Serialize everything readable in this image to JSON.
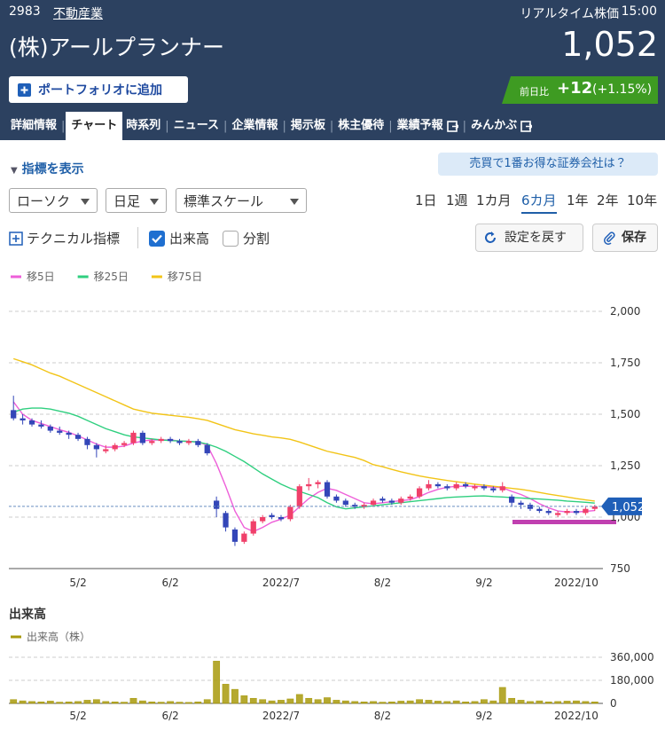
{
  "header": {
    "code": "2983",
    "sector": "不動産業",
    "realtime_label": "リアルタイム株価",
    "time": "15:00",
    "company_name": "(株)アールプランナー",
    "price": "1,052",
    "portfolio_button": "ポートフォリオに追加",
    "change_label": "前日比",
    "change": "+12",
    "change_percent": "(+1.15%)"
  },
  "tabs": [
    "詳細情報",
    "チャート",
    "時系列",
    "ニュース",
    "企業情報",
    "掲示板",
    "株主優待",
    "業績予報",
    "みんかぶ"
  ],
  "controls": {
    "show_indicators": "指標を表示",
    "banner": "売買で1番お得な証券会社は？",
    "chart_style": "ローソク",
    "interval": "日足",
    "scale": "標準スケール",
    "periods": [
      "1日",
      "1週",
      "1カ月",
      "6カ月",
      "1年",
      "2年",
      "10年"
    ],
    "technical": "テクニカル指標",
    "volume_checkbox": "出来高",
    "split_checkbox": "分割",
    "reset_button": "設定を戻す",
    "save_button": "保存"
  },
  "volume_heading": "出来高",
  "chart_data": [
    {
      "type": "candlestick",
      "up_color": "#f0406a",
      "down_color": "#3346b8",
      "categories": [
        null,
        null,
        null,
        null,
        null,
        null,
        null,
        "5/2",
        null,
        null,
        null,
        null,
        null,
        null,
        null,
        null,
        null,
        "6/2",
        null,
        null,
        null,
        null,
        null,
        null,
        null,
        null,
        null,
        null,
        null,
        "2022/7",
        null,
        null,
        null,
        null,
        null,
        null,
        null,
        null,
        null,
        null,
        "8/2",
        null,
        null,
        null,
        null,
        null,
        null,
        null,
        null,
        null,
        null,
        "9/2",
        null,
        null,
        null,
        null,
        null,
        null,
        null,
        null,
        null,
        "2022/10",
        null,
        null
      ],
      "candles": [
        [
          1520,
          1590,
          1470,
          1480
        ],
        [
          1480,
          1500,
          1450,
          1470
        ],
        [
          1470,
          1480,
          1440,
          1450
        ],
        [
          1450,
          1470,
          1430,
          1440
        ],
        [
          1440,
          1450,
          1410,
          1420
        ],
        [
          1420,
          1440,
          1400,
          1410
        ],
        [
          1410,
          1420,
          1380,
          1400
        ],
        [
          1400,
          1410,
          1370,
          1380
        ],
        [
          1380,
          1390,
          1330,
          1350
        ],
        [
          1350,
          1360,
          1290,
          1330
        ],
        [
          1320,
          1350,
          1310,
          1330
        ],
        [
          1330,
          1360,
          1320,
          1350
        ],
        [
          1350,
          1370,
          1340,
          1360
        ],
        [
          1360,
          1420,
          1350,
          1410
        ],
        [
          1410,
          1420,
          1350,
          1360
        ],
        [
          1360,
          1380,
          1350,
          1370
        ],
        [
          1370,
          1390,
          1360,
          1380
        ],
        [
          1380,
          1390,
          1360,
          1370
        ],
        [
          1370,
          1380,
          1350,
          1360
        ],
        [
          1360,
          1380,
          1350,
          1370
        ],
        [
          1370,
          1380,
          1340,
          1350
        ],
        [
          1350,
          1360,
          1300,
          1310
        ],
        [
          1080,
          1100,
          1000,
          1040
        ],
        [
          1020,
          1030,
          930,
          950
        ],
        [
          940,
          950,
          860,
          880
        ],
        [
          880,
          930,
          870,
          920
        ],
        [
          920,
          990,
          910,
          980
        ],
        [
          980,
          1010,
          970,
          1000
        ],
        [
          1010,
          1020,
          990,
          1000
        ],
        [
          1000,
          1010,
          980,
          990
        ],
        [
          990,
          1060,
          980,
          1050
        ],
        [
          1050,
          1160,
          1040,
          1150
        ],
        [
          1150,
          1190,
          1130,
          1160
        ],
        [
          1160,
          1180,
          1140,
          1170
        ],
        [
          1170,
          1180,
          1090,
          1100
        ],
        [
          1100,
          1110,
          1070,
          1080
        ],
        [
          1080,
          1090,
          1050,
          1060
        ],
        [
          1060,
          1070,
          1040,
          1050
        ],
        [
          1050,
          1070,
          1040,
          1060
        ],
        [
          1060,
          1090,
          1050,
          1080
        ],
        [
          1090,
          1100,
          1070,
          1080
        ],
        [
          1080,
          1090,
          1060,
          1070
        ],
        [
          1070,
          1100,
          1060,
          1090
        ],
        [
          1090,
          1110,
          1080,
          1100
        ],
        [
          1100,
          1150,
          1090,
          1140
        ],
        [
          1140,
          1180,
          1130,
          1160
        ],
        [
          1160,
          1170,
          1140,
          1150
        ],
        [
          1150,
          1160,
          1130,
          1140
        ],
        [
          1140,
          1170,
          1130,
          1160
        ],
        [
          1160,
          1170,
          1140,
          1150
        ],
        [
          1140,
          1160,
          1130,
          1150
        ],
        [
          1150,
          1160,
          1130,
          1140
        ],
        [
          1140,
          1150,
          1120,
          1130
        ],
        [
          1130,
          1170,
          1120,
          1150
        ],
        [
          1100,
          1110,
          1050,
          1070
        ],
        [
          1070,
          1080,
          1040,
          1060
        ],
        [
          1060,
          1070,
          1030,
          1040
        ],
        [
          1040,
          1050,
          1020,
          1030
        ],
        [
          1030,
          1040,
          1010,
          1020
        ],
        [
          1010,
          1030,
          1000,
          1020
        ],
        [
          1020,
          1040,
          1010,
          1030
        ],
        [
          1030,
          1040,
          1010,
          1020
        ],
        [
          1020,
          1050,
          1010,
          1040
        ],
        [
          1040,
          1060,
          1030,
          1052
        ]
      ],
      "series": [
        {
          "name": "移5日",
          "color": "#ee5fd9",
          "values": [
            1560,
            1500,
            1470,
            1455,
            1440,
            1425,
            1412,
            1395,
            1375,
            1355,
            1340,
            1340,
            1345,
            1360,
            1370,
            1375,
            1375,
            1375,
            1370,
            1368,
            1365,
            1350,
            1260,
            1150,
            1030,
            950,
            930,
            950,
            975,
            990,
            1010,
            1050,
            1090,
            1120,
            1140,
            1130,
            1110,
            1090,
            1070,
            1065,
            1070,
            1075,
            1080,
            1085,
            1100,
            1120,
            1135,
            1145,
            1150,
            1150,
            1150,
            1148,
            1145,
            1143,
            1125,
            1110,
            1090,
            1065,
            1045,
            1030,
            1025,
            1025,
            1028,
            1032
          ]
        },
        {
          "name": "移25日",
          "color": "#2fcf7f",
          "values": [
            1510,
            1525,
            1530,
            1530,
            1525,
            1515,
            1505,
            1490,
            1470,
            1450,
            1430,
            1415,
            1400,
            1390,
            1385,
            1380,
            1375,
            1372,
            1370,
            1368,
            1365,
            1355,
            1340,
            1320,
            1295,
            1270,
            1240,
            1210,
            1185,
            1160,
            1140,
            1125,
            1110,
            1095,
            1070,
            1050,
            1040,
            1045,
            1050,
            1055,
            1060,
            1065,
            1070,
            1075,
            1080,
            1085,
            1090,
            1095,
            1098,
            1100,
            1102,
            1103,
            1100,
            1098,
            1095,
            1093,
            1090,
            1088,
            1085,
            1082,
            1078,
            1075,
            1072,
            1068
          ]
        },
        {
          "name": "移75日",
          "color": "#f2c417",
          "values": [
            1770,
            1755,
            1740,
            1720,
            1700,
            1685,
            1665,
            1645,
            1625,
            1605,
            1585,
            1565,
            1545,
            1525,
            1515,
            1505,
            1500,
            1495,
            1490,
            1485,
            1478,
            1470,
            1455,
            1440,
            1425,
            1415,
            1405,
            1398,
            1390,
            1385,
            1378,
            1365,
            1350,
            1335,
            1320,
            1310,
            1300,
            1290,
            1275,
            1255,
            1245,
            1232,
            1220,
            1210,
            1200,
            1192,
            1185,
            1178,
            1172,
            1166,
            1160,
            1155,
            1150,
            1145,
            1140,
            1135,
            1128,
            1120,
            1112,
            1105,
            1098,
            1090,
            1084,
            1078
          ]
        }
      ],
      "ylim": [
        750,
        2000
      ],
      "yticks": [
        750,
        {
          "value": 1000,
          "label": "1,000"
        },
        {
          "value": 1250,
          "label": "1,250"
        },
        {
          "value": 1500,
          "label": "1,500"
        },
        {
          "value": 1750,
          "label": "1,750"
        },
        {
          "value": 2000,
          "label": "2,000"
        }
      ],
      "grid": true,
      "current_price": {
        "value": 1052,
        "label": "1,052"
      }
    },
    {
      "type": "bar",
      "categories": [
        null,
        null,
        null,
        null,
        null,
        null,
        null,
        "5/2",
        null,
        null,
        null,
        null,
        null,
        null,
        null,
        null,
        null,
        "6/2",
        null,
        null,
        null,
        null,
        null,
        null,
        null,
        null,
        null,
        null,
        null,
        "2022/7",
        null,
        null,
        null,
        null,
        null,
        null,
        null,
        null,
        null,
        null,
        "8/2",
        null,
        null,
        null,
        null,
        null,
        null,
        null,
        null,
        null,
        null,
        "9/2",
        null,
        null,
        null,
        null,
        null,
        null,
        null,
        null,
        null,
        "2022/10",
        null,
        null
      ],
      "series": [
        {
          "name": "出来高（株）",
          "color": "#a89a0c",
          "values": [
            30000,
            20000,
            15000,
            12000,
            18000,
            10000,
            12000,
            15000,
            25000,
            30000,
            15000,
            12000,
            10000,
            40000,
            20000,
            12000,
            10000,
            15000,
            10000,
            8000,
            12000,
            30000,
            330000,
            150000,
            110000,
            60000,
            40000,
            30000,
            20000,
            25000,
            35000,
            70000,
            40000,
            30000,
            45000,
            25000,
            20000,
            15000,
            12000,
            15000,
            10000,
            12000,
            18000,
            20000,
            30000,
            25000,
            18000,
            15000,
            20000,
            12000,
            15000,
            30000,
            20000,
            125000,
            40000,
            25000,
            15000,
            20000,
            12000,
            15000,
            18000,
            20000,
            15000,
            12000
          ]
        }
      ],
      "ylim": [
        0,
        360000
      ],
      "yticks": [
        0,
        {
          "value": 180000,
          "label": "180,000"
        },
        {
          "value": 360000,
          "label": "360,000"
        }
      ],
      "grid": true
    }
  ]
}
